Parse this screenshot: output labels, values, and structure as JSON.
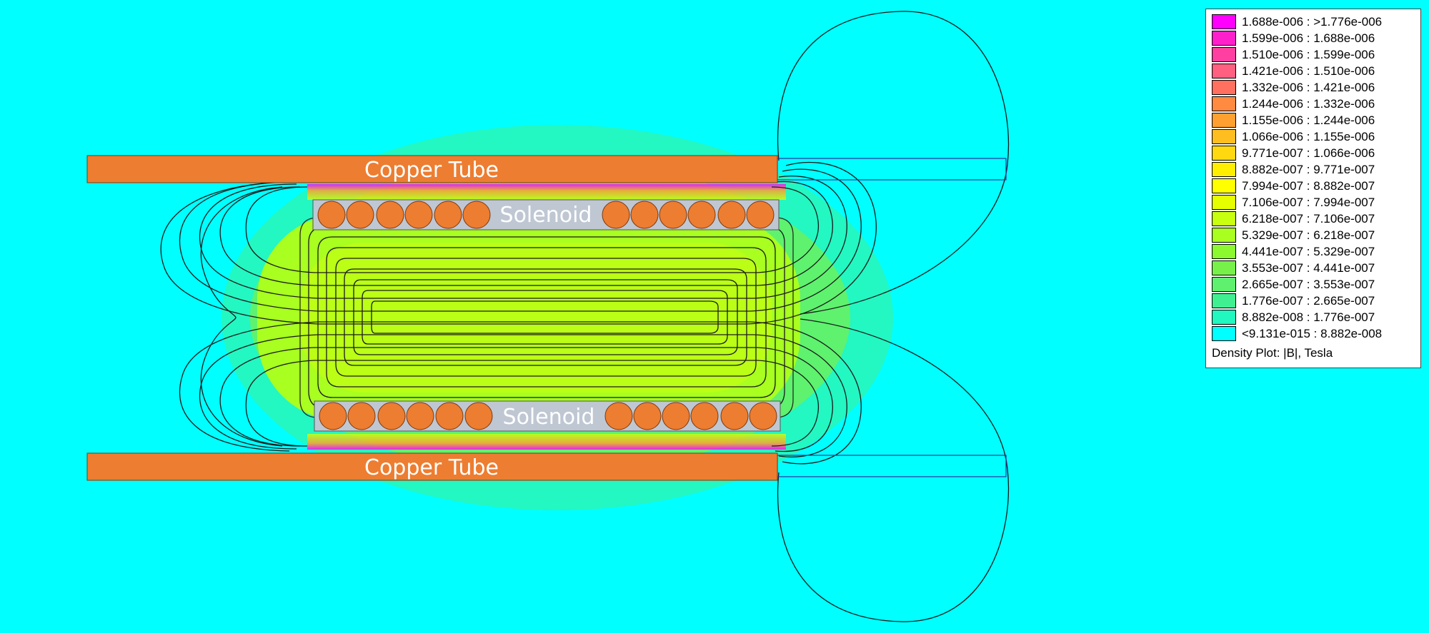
{
  "labels": {
    "tube_top": "Copper Tube",
    "tube_bottom": "Copper Tube",
    "solenoid_top": "Solenoid",
    "solenoid_bottom": "Solenoid"
  },
  "colors": {
    "background": "#00ffff",
    "tube": "#ed7d31",
    "solenoid_core": "#bfc7d3",
    "wire": "#ed7d31",
    "contour": "#1a1a1a"
  },
  "legend": {
    "caption": "Density Plot: |B|, Tesla",
    "items": [
      {
        "label": "1.688e-006 : >1.776e-006",
        "color": "#ff00ff"
      },
      {
        "label": "1.599e-006 : 1.688e-006",
        "color": "#ff20cc"
      },
      {
        "label": "1.510e-006 : 1.599e-006",
        "color": "#ff40a0"
      },
      {
        "label": "1.421e-006 : 1.510e-006",
        "color": "#ff5f80"
      },
      {
        "label": "1.332e-006 : 1.421e-006",
        "color": "#ff7060"
      },
      {
        "label": "1.244e-006 : 1.332e-006",
        "color": "#ff8a40"
      },
      {
        "label": "1.155e-006 : 1.244e-006",
        "color": "#ffa030"
      },
      {
        "label": "1.066e-006 : 1.155e-006",
        "color": "#ffbe20"
      },
      {
        "label": "9.771e-007 : 1.066e-006",
        "color": "#ffd810"
      },
      {
        "label": "8.882e-007 : 9.771e-007",
        "color": "#ffee00"
      },
      {
        "label": "7.994e-007 : 8.882e-007",
        "color": "#ffff00"
      },
      {
        "label": "7.106e-007 : 7.994e-007",
        "color": "#e6ff00"
      },
      {
        "label": "6.218e-007 : 7.106e-007",
        "color": "#c8ff10"
      },
      {
        "label": "5.329e-007 : 6.218e-007",
        "color": "#a8ff20"
      },
      {
        "label": "4.441e-007 : 5.329e-007",
        "color": "#8cf830"
      },
      {
        "label": "3.553e-007 : 4.441e-007",
        "color": "#78f04a"
      },
      {
        "label": "2.665e-007 : 3.553e-007",
        "color": "#60f070"
      },
      {
        "label": "1.776e-007 : 2.665e-007",
        "color": "#40f090"
      },
      {
        "label": "8.882e-008 : 1.776e-007",
        "color": "#20f8c0"
      },
      {
        "label": "<9.131e-015 : 8.882e-008",
        "color": "#00ffff"
      }
    ]
  }
}
